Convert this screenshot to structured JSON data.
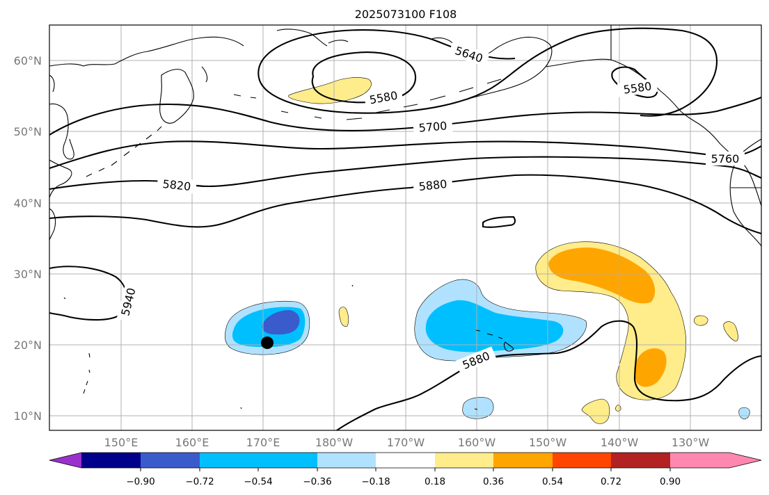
{
  "title": "2025073100 F108",
  "lat_labels": [
    "60°N",
    "50°N",
    "40°N",
    "30°N",
    "20°N",
    "10°N"
  ],
  "lon_labels": [
    "150°E",
    "160°E",
    "170°E",
    "180°W",
    "170°W",
    "160°W",
    "150°W",
    "140°W",
    "130°W"
  ],
  "height_contour_labels": [
    "5640",
    "5580",
    "5580",
    "5700",
    "5760",
    "5820",
    "5880",
    "5880",
    "5940"
  ],
  "colorbar": {
    "ticks": [
      "−0.90",
      "−0.72",
      "−0.54",
      "−0.36",
      "−0.18",
      "0.18",
      "0.36",
      "0.54",
      "0.72",
      "0.90"
    ],
    "colors": [
      "#9932cc",
      "#00008b",
      "#3a5bcc",
      "#00bfff",
      "#b0e2ff",
      "#ffffff",
      "#ffec8b",
      "#ffa500",
      "#ff4500",
      "#b22222",
      "#ff88b0"
    ]
  },
  "colors": {
    "grid": "#b0b0b0",
    "tick_text": "#777777"
  }
}
